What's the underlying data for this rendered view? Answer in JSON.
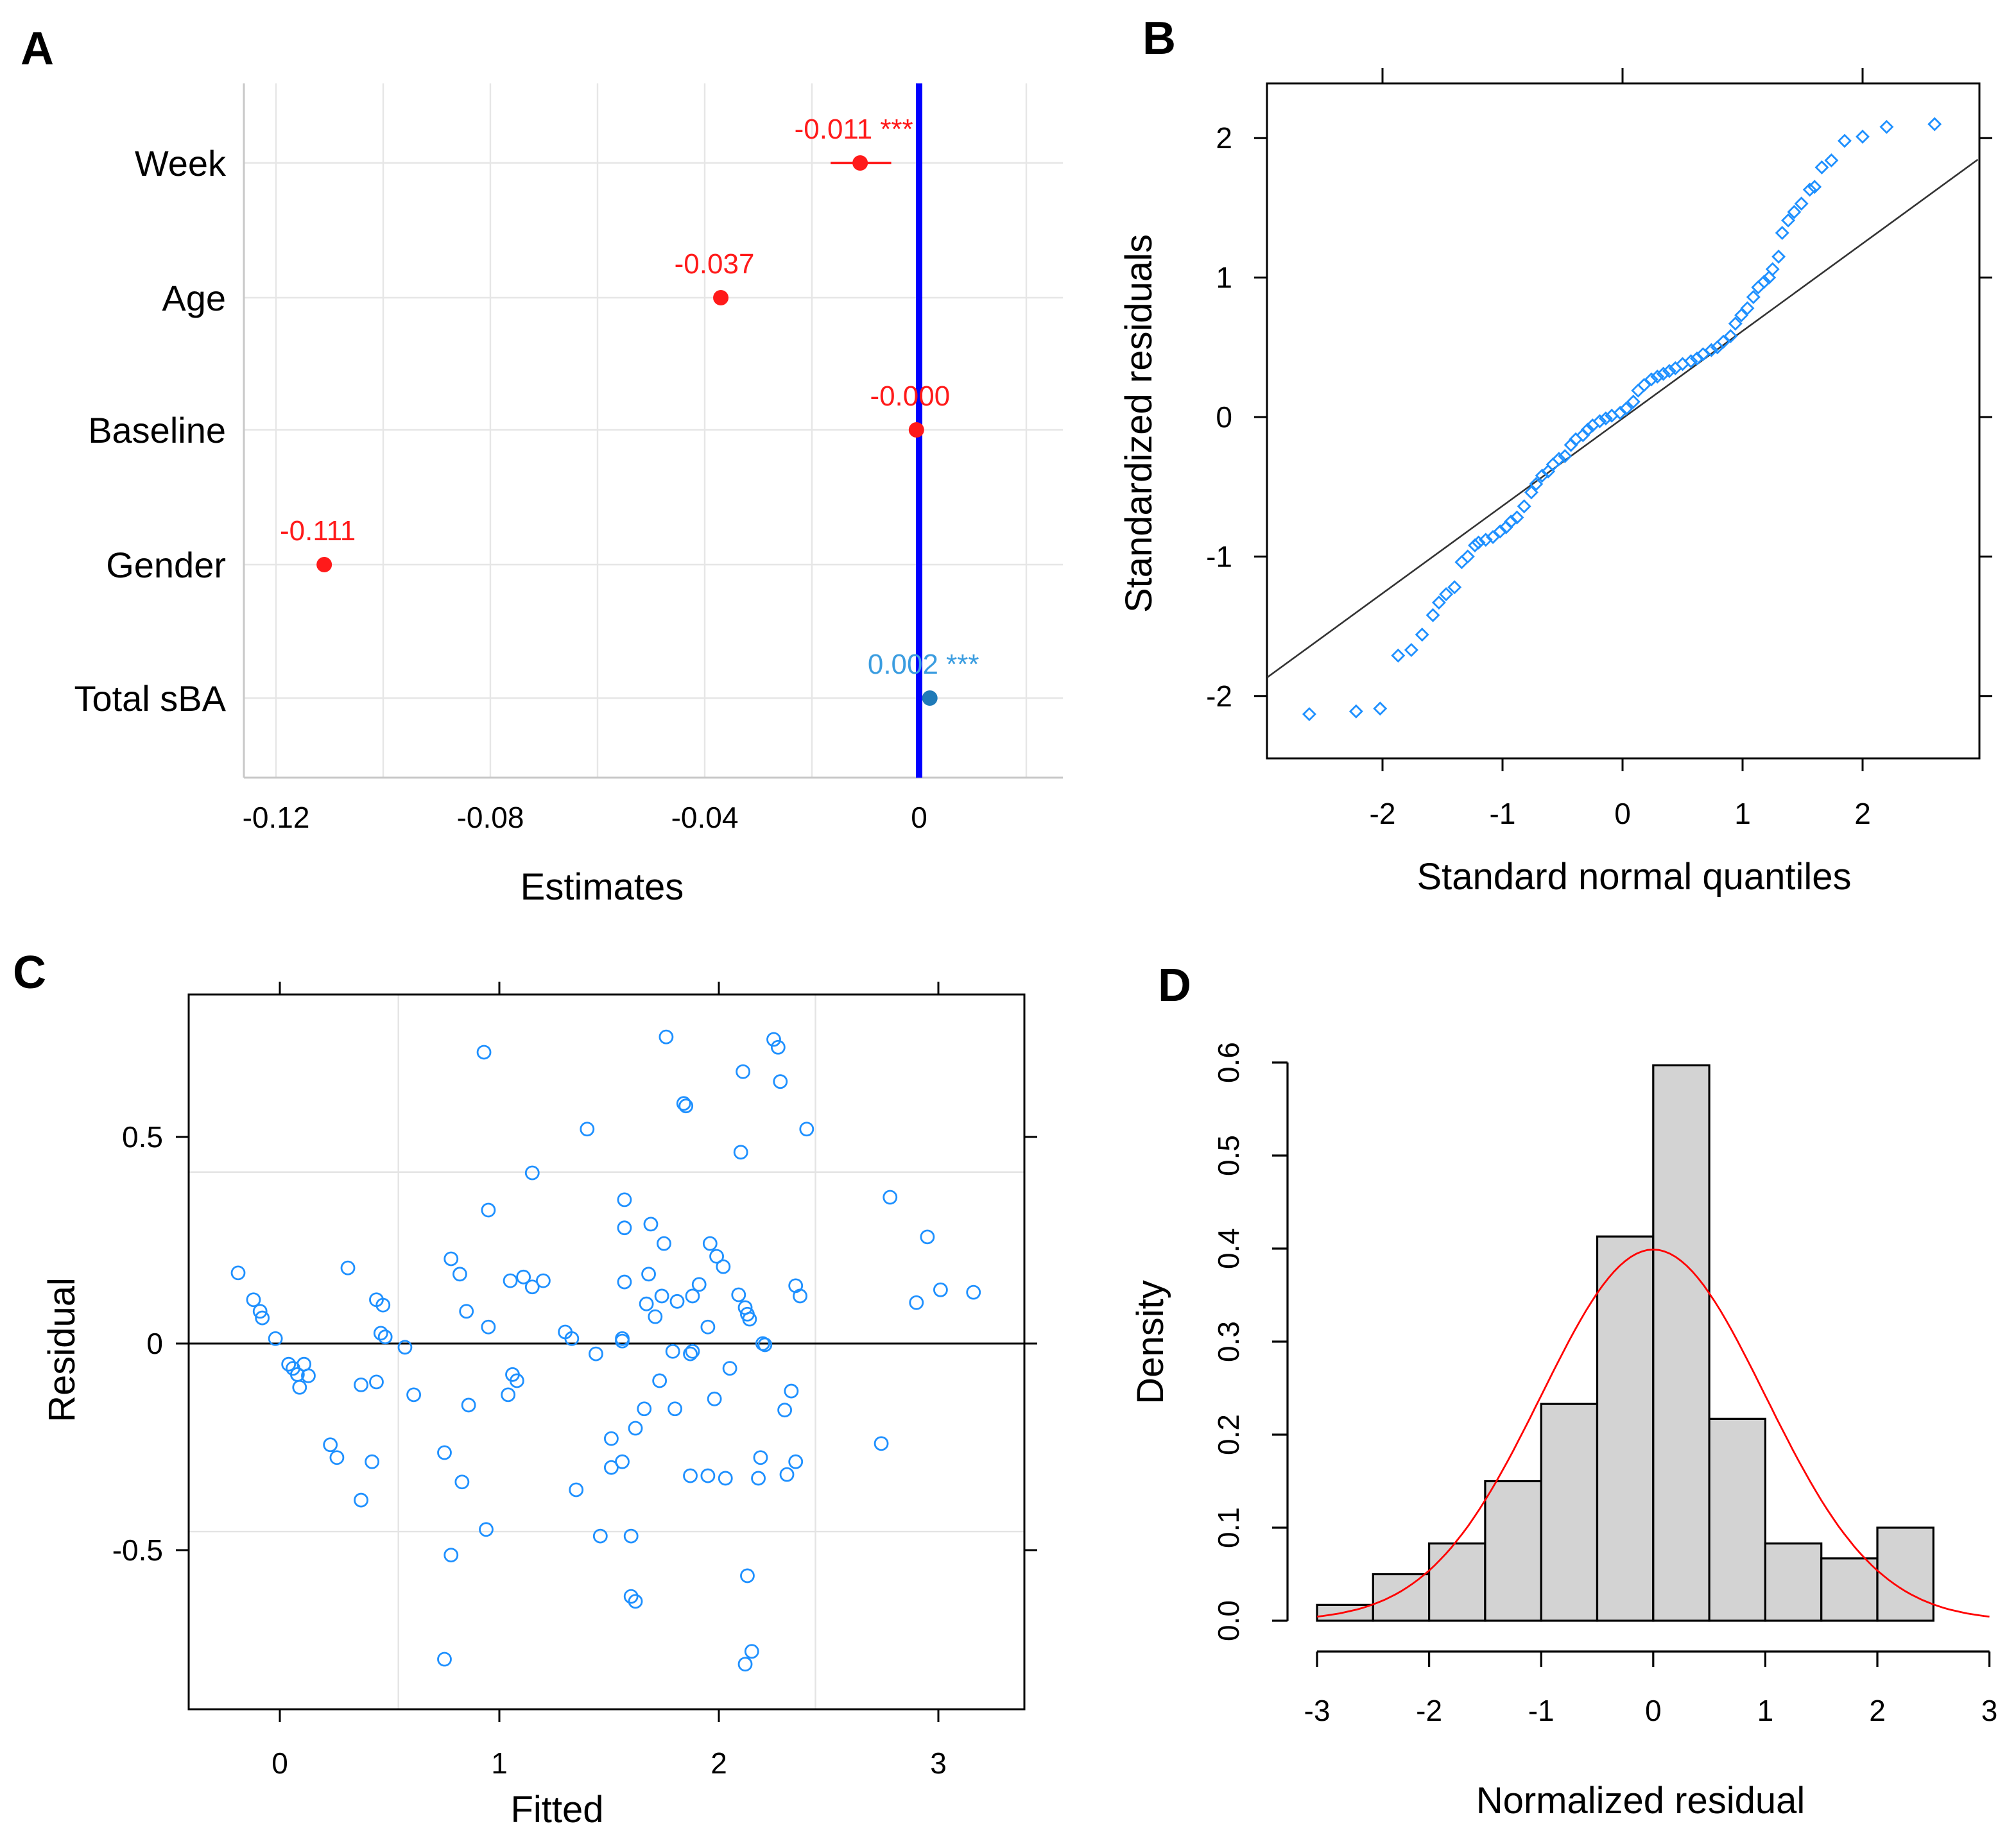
{
  "chart_data": [
    {
      "panel": "A",
      "type": "scatter",
      "subtype": "coefficient-plot",
      "xlabel": "Estimates",
      "xlim": [
        -0.125,
        0.0245
      ],
      "xticks": [
        -0.12,
        -0.08,
        -0.04,
        0
      ],
      "xtick_labels": [
        "-0.12",
        "-0.08",
        "-0.04",
        "0"
      ],
      "grid": true,
      "reference_line": 0,
      "reference_color": "#0000ff",
      "terms": [
        {
          "name": "Week",
          "estimate": -0.011,
          "ci": [
            -0.0165,
            -0.0052
          ],
          "label": "-0.011 ***",
          "color": "#ff1a1a"
        },
        {
          "name": "Age",
          "estimate": -0.037,
          "ci": [
            -0.037,
            -0.037
          ],
          "label": "-0.037",
          "color": "#ff1a1a"
        },
        {
          "name": "Baseline",
          "estimate": -0.0005,
          "ci": [
            -0.001,
            0.0
          ],
          "label": "-0.000",
          "color": "#ff1a1a"
        },
        {
          "name": "Gender",
          "estimate": -0.111,
          "ci": [
            -0.111,
            -0.111
          ],
          "label": "-0.111",
          "color": "#ff1a1a"
        },
        {
          "name": "Total sBA",
          "estimate": 0.002,
          "ci": [
            0.002,
            0.002
          ],
          "label": "0.002 ***",
          "color": "#1f7ab8",
          "label_color": "#3b9de0"
        }
      ]
    },
    {
      "panel": "B",
      "type": "scatter",
      "subtype": "qq-plot",
      "xlabel": "Standard normal quantiles",
      "ylabel": "Standardized residuals",
      "xlim": [
        -2.96,
        2.96
      ],
      "ylim": [
        -2.4,
        2.4
      ],
      "xticks": [
        -2,
        -1,
        0,
        1,
        2
      ],
      "yticks": [
        -2,
        -1,
        0,
        1,
        2
      ],
      "reference_line": {
        "slope": 0.627,
        "intercept": -0.01
      },
      "point_color": "#1e90ff",
      "points": [
        [
          -2.61,
          -2.13
        ],
        [
          -2.22,
          -2.11
        ],
        [
          -2.02,
          -2.09
        ],
        [
          -1.87,
          -1.71
        ],
        [
          -1.76,
          -1.67
        ],
        [
          -1.67,
          -1.56
        ],
        [
          -1.58,
          -1.42
        ],
        [
          -1.53,
          -1.33
        ],
        [
          -1.47,
          -1.27
        ],
        [
          -1.4,
          -1.22
        ],
        [
          -1.34,
          -1.04
        ],
        [
          -1.29,
          -1.0
        ],
        [
          -1.23,
          -0.92
        ],
        [
          -1.2,
          -0.9
        ],
        [
          -1.14,
          -0.88
        ],
        [
          -1.08,
          -0.86
        ],
        [
          -1.02,
          -0.82
        ],
        [
          -0.97,
          -0.79
        ],
        [
          -0.93,
          -0.75
        ],
        [
          -0.88,
          -0.72
        ],
        [
          -0.82,
          -0.64
        ],
        [
          -0.76,
          -0.54
        ],
        [
          -0.72,
          -0.48
        ],
        [
          -0.67,
          -0.42
        ],
        [
          -0.62,
          -0.39
        ],
        [
          -0.58,
          -0.34
        ],
        [
          -0.53,
          -0.3
        ],
        [
          -0.48,
          -0.28
        ],
        [
          -0.43,
          -0.2
        ],
        [
          -0.39,
          -0.16
        ],
        [
          -0.33,
          -0.13
        ],
        [
          -0.29,
          -0.09
        ],
        [
          -0.25,
          -0.06
        ],
        [
          -0.19,
          -0.03
        ],
        [
          -0.14,
          -0.01
        ],
        [
          -0.09,
          0.01
        ],
        [
          -0.02,
          0.03
        ],
        [
          0.03,
          0.06
        ],
        [
          0.09,
          0.11
        ],
        [
          0.13,
          0.19
        ],
        [
          0.18,
          0.23
        ],
        [
          0.24,
          0.27
        ],
        [
          0.29,
          0.29
        ],
        [
          0.34,
          0.31
        ],
        [
          0.39,
          0.33
        ],
        [
          0.44,
          0.35
        ],
        [
          0.5,
          0.38
        ],
        [
          0.57,
          0.4
        ],
        [
          0.62,
          0.42
        ],
        [
          0.67,
          0.45
        ],
        [
          0.74,
          0.48
        ],
        [
          0.79,
          0.5
        ],
        [
          0.84,
          0.54
        ],
        [
          0.9,
          0.58
        ],
        [
          0.94,
          0.67
        ],
        [
          0.99,
          0.73
        ],
        [
          1.04,
          0.78
        ],
        [
          1.09,
          0.86
        ],
        [
          1.13,
          0.93
        ],
        [
          1.18,
          0.97
        ],
        [
          1.22,
          1.0
        ],
        [
          1.25,
          1.06
        ],
        [
          1.3,
          1.15
        ],
        [
          1.33,
          1.32
        ],
        [
          1.38,
          1.41
        ],
        [
          1.43,
          1.47
        ],
        [
          1.49,
          1.53
        ],
        [
          1.56,
          1.63
        ],
        [
          1.6,
          1.65
        ],
        [
          1.66,
          1.79
        ],
        [
          1.74,
          1.84
        ],
        [
          1.85,
          1.98
        ],
        [
          2.0,
          2.01
        ],
        [
          2.2,
          2.08
        ],
        [
          2.6,
          2.1
        ]
      ]
    },
    {
      "panel": "C",
      "type": "scatter",
      "xlabel": "Fitted",
      "ylabel": "Residual",
      "xlim": [
        -0.415,
        3.39
      ],
      "ylim": [
        -0.885,
        0.845
      ],
      "xticks": [
        0,
        1,
        2,
        3
      ],
      "yticks": [
        0.5,
        0,
        -0.5
      ],
      "ytick_labels": [
        "0.5",
        "0",
        "-0.5"
      ],
      "grid_x": [
        0.54,
        2.44
      ],
      "grid_y": [
        0.415,
        -0.455
      ],
      "reference_line": 0,
      "point_color": "#1e90ff",
      "points": [
        [
          -0.19,
          0.171
        ],
        [
          -0.12,
          0.106
        ],
        [
          -0.09,
          0.078
        ],
        [
          -0.08,
          0.062
        ],
        [
          -0.02,
          0.012
        ],
        [
          0.04,
          -0.05
        ],
        [
          0.06,
          -0.06
        ],
        [
          0.08,
          -0.075
        ],
        [
          0.11,
          -0.05
        ],
        [
          0.13,
          -0.078
        ],
        [
          0.09,
          -0.106
        ],
        [
          0.23,
          -0.245
        ],
        [
          0.26,
          -0.276
        ],
        [
          0.31,
          0.183
        ],
        [
          0.37,
          -0.1
        ],
        [
          0.44,
          -0.093
        ],
        [
          0.37,
          -0.379
        ],
        [
          0.42,
          -0.286
        ],
        [
          0.44,
          0.106
        ],
        [
          0.47,
          0.093
        ],
        [
          0.46,
          0.025
        ],
        [
          0.48,
          0.016
        ],
        [
          0.57,
          -0.009
        ],
        [
          0.61,
          -0.124
        ],
        [
          0.75,
          -0.264
        ],
        [
          0.78,
          -0.512
        ],
        [
          0.75,
          -0.764
        ],
        [
          0.78,
          0.205
        ],
        [
          0.82,
          0.168
        ],
        [
          0.83,
          -0.335
        ],
        [
          0.85,
          0.078
        ],
        [
          0.86,
          -0.149
        ],
        [
          0.93,
          0.705
        ],
        [
          0.95,
          0.323
        ],
        [
          0.94,
          -0.45
        ],
        [
          0.95,
          0.04
        ],
        [
          1.04,
          -0.124
        ],
        [
          1.05,
          0.152
        ],
        [
          1.06,
          -0.075
        ],
        [
          1.08,
          -0.09
        ],
        [
          1.11,
          0.161
        ],
        [
          1.15,
          0.137
        ],
        [
          1.15,
          0.413
        ],
        [
          1.2,
          0.152
        ],
        [
          1.3,
          0.028
        ],
        [
          1.33,
          0.012
        ],
        [
          1.35,
          -0.354
        ],
        [
          1.4,
          0.519
        ],
        [
          1.44,
          -0.025
        ],
        [
          1.46,
          -0.466
        ],
        [
          1.51,
          -0.23
        ],
        [
          1.51,
          -0.3
        ],
        [
          1.56,
          0.012
        ],
        [
          1.56,
          0.006
        ],
        [
          1.56,
          -0.286
        ],
        [
          1.57,
          0.149
        ],
        [
          1.57,
          0.348
        ],
        [
          1.57,
          0.28
        ],
        [
          1.6,
          -0.466
        ],
        [
          1.6,
          -0.612
        ],
        [
          1.62,
          -0.624
        ],
        [
          1.62,
          -0.205
        ],
        [
          1.66,
          -0.158
        ],
        [
          1.67,
          0.096
        ],
        [
          1.68,
          0.168
        ],
        [
          1.69,
          0.289
        ],
        [
          1.71,
          0.065
        ],
        [
          1.73,
          -0.09
        ],
        [
          1.74,
          0.115
        ],
        [
          1.75,
          0.242
        ],
        [
          1.76,
          0.742
        ],
        [
          1.79,
          -0.019
        ],
        [
          1.8,
          -0.158
        ],
        [
          1.81,
          0.102
        ],
        [
          1.84,
          0.581
        ],
        [
          1.85,
          0.575
        ],
        [
          1.87,
          -0.025
        ],
        [
          1.88,
          -0.019
        ],
        [
          1.87,
          -0.32
        ],
        [
          1.88,
          0.115
        ],
        [
          1.91,
          0.143
        ],
        [
          1.95,
          0.04
        ],
        [
          1.95,
          -0.32
        ],
        [
          1.96,
          0.242
        ],
        [
          1.98,
          -0.134
        ],
        [
          1.99,
          0.211
        ],
        [
          2.02,
          0.186
        ],
        [
          2.03,
          -0.326
        ],
        [
          2.05,
          -0.06
        ],
        [
          2.09,
          0.118
        ],
        [
          2.1,
          0.463
        ],
        [
          2.11,
          0.658
        ],
        [
          2.12,
          0.087
        ],
        [
          2.13,
          0.071
        ],
        [
          2.14,
          0.059
        ],
        [
          2.13,
          -0.562
        ],
        [
          2.12,
          -0.776
        ],
        [
          2.15,
          -0.745
        ],
        [
          2.18,
          -0.326
        ],
        [
          2.19,
          -0.276
        ],
        [
          2.2,
          0
        ],
        [
          2.21,
          -0.003
        ],
        [
          2.25,
          0.736
        ],
        [
          2.27,
          0.717
        ],
        [
          2.28,
          0.634
        ],
        [
          2.3,
          -0.161
        ],
        [
          2.31,
          -0.317
        ],
        [
          2.33,
          -0.115
        ],
        [
          2.35,
          0.14
        ],
        [
          2.35,
          -0.286
        ],
        [
          2.37,
          0.115
        ],
        [
          2.4,
          0.519
        ],
        [
          2.74,
          -0.242
        ],
        [
          2.78,
          0.354
        ],
        [
          2.9,
          0.099
        ],
        [
          2.95,
          0.258
        ],
        [
          3.01,
          0.13
        ],
        [
          3.16,
          0.124
        ]
      ]
    },
    {
      "panel": "D",
      "type": "bar",
      "subtype": "histogram",
      "xlabel": "Normalized residual",
      "ylabel": "Density",
      "xlim": [
        -3,
        3
      ],
      "ylim": [
        0,
        0.6
      ],
      "xticks": [
        -3,
        -2,
        -1,
        0,
        1,
        2,
        3
      ],
      "yticks": [
        0.0,
        0.1,
        0.2,
        0.3,
        0.4,
        0.5,
        0.6
      ],
      "ytick_labels": [
        "0.0",
        "0.1",
        "0.2",
        "0.3",
        "0.4",
        "0.5",
        "0.6"
      ],
      "bin_edges": [
        -3,
        -2.5,
        -2,
        -1.5,
        -1,
        -0.5,
        0,
        0.5,
        1,
        1.5,
        2,
        2.5
      ],
      "values": [
        0.017,
        0.05,
        0.083,
        0.15,
        0.233,
        0.413,
        0.597,
        0.217,
        0.083,
        0.067,
        0.1
      ],
      "bar_color": "#d3d3d3",
      "overlay": {
        "type": "normal-density",
        "mean": 0,
        "sd": 1,
        "color": "#ff0000"
      }
    }
  ],
  "panel_labels": {
    "a": "A",
    "b": "B",
    "c": "C",
    "d": "D"
  }
}
